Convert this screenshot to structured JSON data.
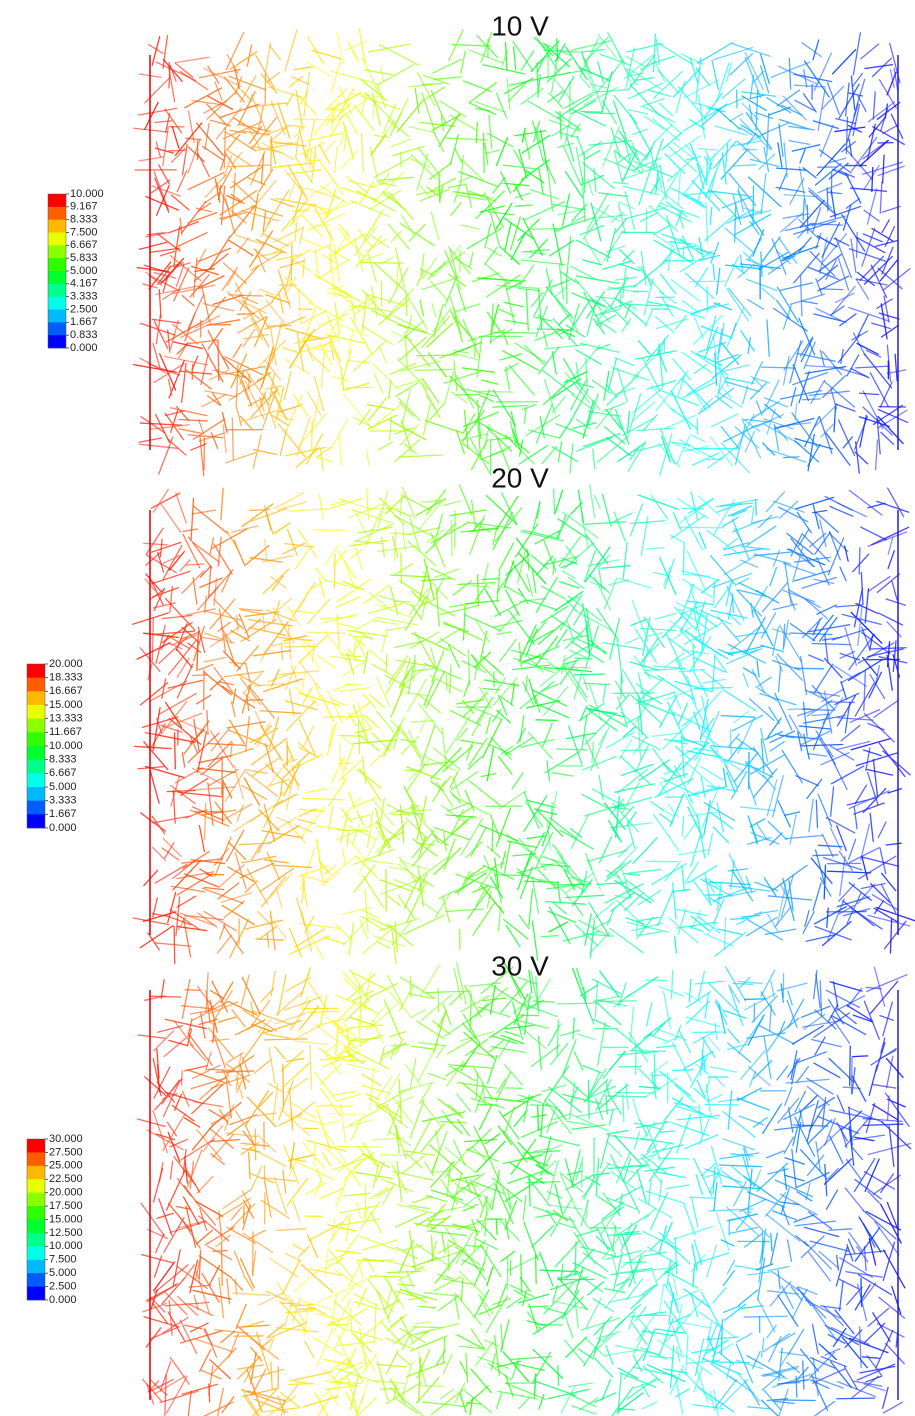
{
  "panels": [
    {
      "title": "10 V",
      "colorbar": {
        "labels": [
          "10.000",
          "9.167",
          "8.333",
          "7.500",
          "6.667",
          "5.833",
          "5.000",
          "4.167",
          "3.333",
          "2.500",
          "1.667",
          "0.833",
          "0.000"
        ]
      }
    },
    {
      "title": "20 V",
      "colorbar": {
        "labels": [
          "20.000",
          "18.333",
          "16.667",
          "15.000",
          "13.333",
          "11.667",
          "10.000",
          "8.333",
          "6.667",
          "5.000",
          "3.333",
          "1.667",
          "0.000"
        ]
      }
    },
    {
      "title": "30 V",
      "colorbar": {
        "labels": [
          "30.000",
          "27.500",
          "25.000",
          "22.500",
          "20.000",
          "17.500",
          "15.000",
          "12.500",
          "10.000",
          "7.500",
          "5.000",
          "2.500",
          "0.000"
        ]
      }
    }
  ]
}
